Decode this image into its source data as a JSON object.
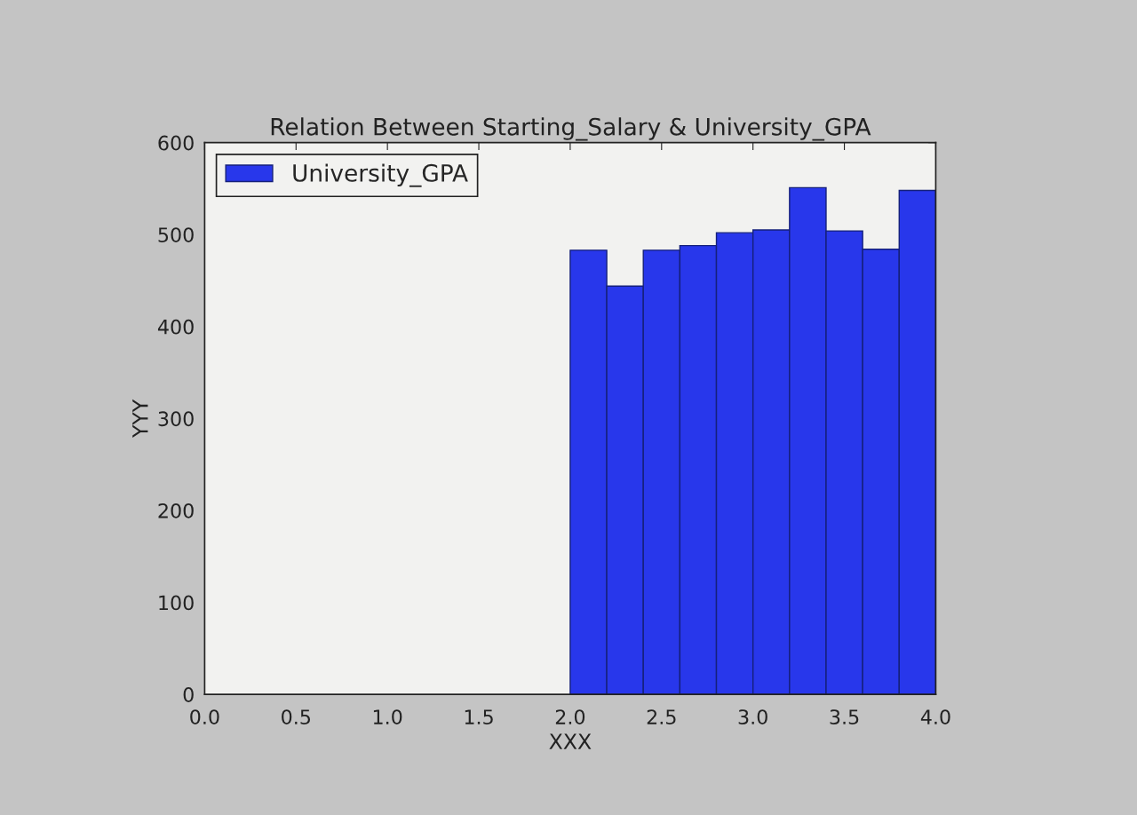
{
  "chart_data": {
    "type": "histogram",
    "title": "Relation Between Starting_Salary & University_GPA",
    "xlabel": "XXX",
    "ylabel": "YYY",
    "bins": [
      2.0,
      2.2,
      2.4,
      2.6,
      2.8,
      3.0,
      3.2,
      3.4,
      3.6,
      3.8,
      4.0
    ],
    "series": [
      {
        "name": "University_GPA",
        "color": "#2837eb",
        "values": [
          483,
          444,
          483,
          488,
          502,
          505,
          551,
          504,
          484,
          548
        ]
      }
    ],
    "xlim": [
      0,
      4
    ],
    "ylim": [
      0,
      600
    ],
    "xticks": [
      {
        "value": 0,
        "label": "0.0"
      },
      {
        "value": 0.5,
        "label": "0.5"
      },
      {
        "value": 1,
        "label": "1.0"
      },
      {
        "value": 1.5,
        "label": "1.5"
      },
      {
        "value": 2,
        "label": "2.0"
      },
      {
        "value": 2.5,
        "label": "2.5"
      },
      {
        "value": 3,
        "label": "3.0"
      },
      {
        "value": 3.5,
        "label": "3.5"
      },
      {
        "value": 4,
        "label": "4.0"
      }
    ],
    "yticks": [
      0,
      100,
      200,
      300,
      400,
      500,
      600
    ],
    "legend": "top left"
  }
}
